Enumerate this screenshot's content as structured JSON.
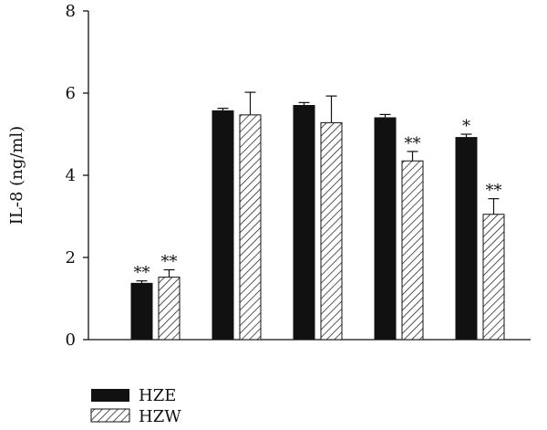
{
  "chart_data": {
    "type": "bar",
    "ylabel": "IL-8 (ng/ml)",
    "ylim": [
      0,
      8
    ],
    "yticks": [
      0,
      2,
      4,
      6,
      8
    ],
    "categories": [
      "",
      "",
      "",
      "",
      ""
    ],
    "series": [
      {
        "name": "HZE",
        "color": "#111111",
        "pattern": "solid",
        "values": [
          1.37,
          5.57,
          5.7,
          5.4,
          4.92
        ],
        "errors": [
          0.06,
          0.06,
          0.07,
          0.08,
          0.08
        ],
        "annotations": [
          "**",
          "",
          "",
          "",
          "*"
        ]
      },
      {
        "name": "HZW",
        "color": "#111111",
        "pattern": "hatch",
        "values": [
          1.52,
          5.47,
          5.28,
          4.35,
          3.05
        ],
        "errors": [
          0.18,
          0.55,
          0.65,
          0.23,
          0.38
        ],
        "annotations": [
          "**",
          "",
          "",
          "**",
          "**"
        ]
      }
    ],
    "grid": false,
    "legend": "bottom-left"
  }
}
